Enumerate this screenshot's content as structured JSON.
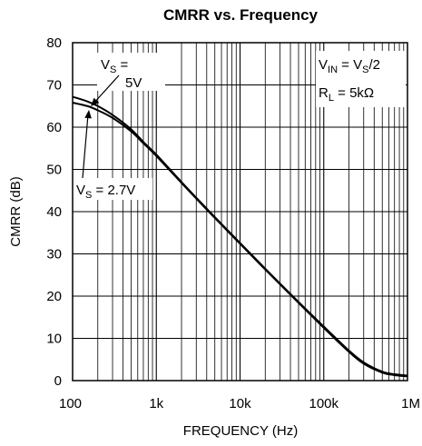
{
  "chart_data": {
    "type": "line",
    "title": "CMRR vs. Frequency",
    "xlabel": "FREQUENCY (Hz)",
    "ylabel": "CMRR (dB)",
    "xscale": "log",
    "xlim": [
      100,
      1000000
    ],
    "ylim": [
      0,
      80
    ],
    "grid": true,
    "x_tick_labels": [
      "100",
      "1k",
      "10k",
      "100k",
      "1M"
    ],
    "x_tick_values": [
      100,
      1000,
      10000,
      100000,
      1000000
    ],
    "y_ticks": [
      0,
      10,
      20,
      30,
      40,
      50,
      60,
      70,
      80
    ],
    "series": [
      {
        "name": "VS = 5V",
        "color": "#000000",
        "x": [
          100,
          150,
          200,
          300,
          500,
          700,
          1000,
          2000,
          3000,
          5000,
          10000,
          20000,
          50000,
          100000,
          200000,
          300000,
          500000,
          700000,
          1000000
        ],
        "y": [
          67.2,
          66.1,
          65.0,
          62.9,
          59.5,
          56.5,
          53.5,
          47.0,
          43.3,
          38.7,
          32.6,
          26.5,
          18.6,
          12.8,
          7.1,
          4.3,
          2.1,
          1.5,
          1.2
        ]
      },
      {
        "name": "VS = 2.7V",
        "color": "#000000",
        "x": [
          100,
          150,
          200,
          300,
          500,
          700,
          1000,
          2000,
          3000,
          5000,
          10000,
          20000,
          50000,
          100000,
          200000,
          300000,
          500000,
          700000,
          1000000
        ],
        "y": [
          65.8,
          65.0,
          64.0,
          62.2,
          59.0,
          56.2,
          53.2,
          46.8,
          43.1,
          38.5,
          32.4,
          26.3,
          18.4,
          12.5,
          6.8,
          4.0,
          1.9,
          1.3,
          1.0
        ]
      }
    ],
    "annotations": {
      "vs5": {
        "sym": "V",
        "sub": "S",
        "eq": " =",
        "value": "5V"
      },
      "vs27": {
        "sym": "V",
        "sub": "S",
        "text": " = 2.7V"
      },
      "vin": {
        "sym": "V",
        "sub": "IN",
        "mid": " = V",
        "sub2": "S",
        "tail": "/2"
      },
      "rl": {
        "sym": "R",
        "sub": "L",
        "text": " = 5kΩ"
      }
    }
  }
}
